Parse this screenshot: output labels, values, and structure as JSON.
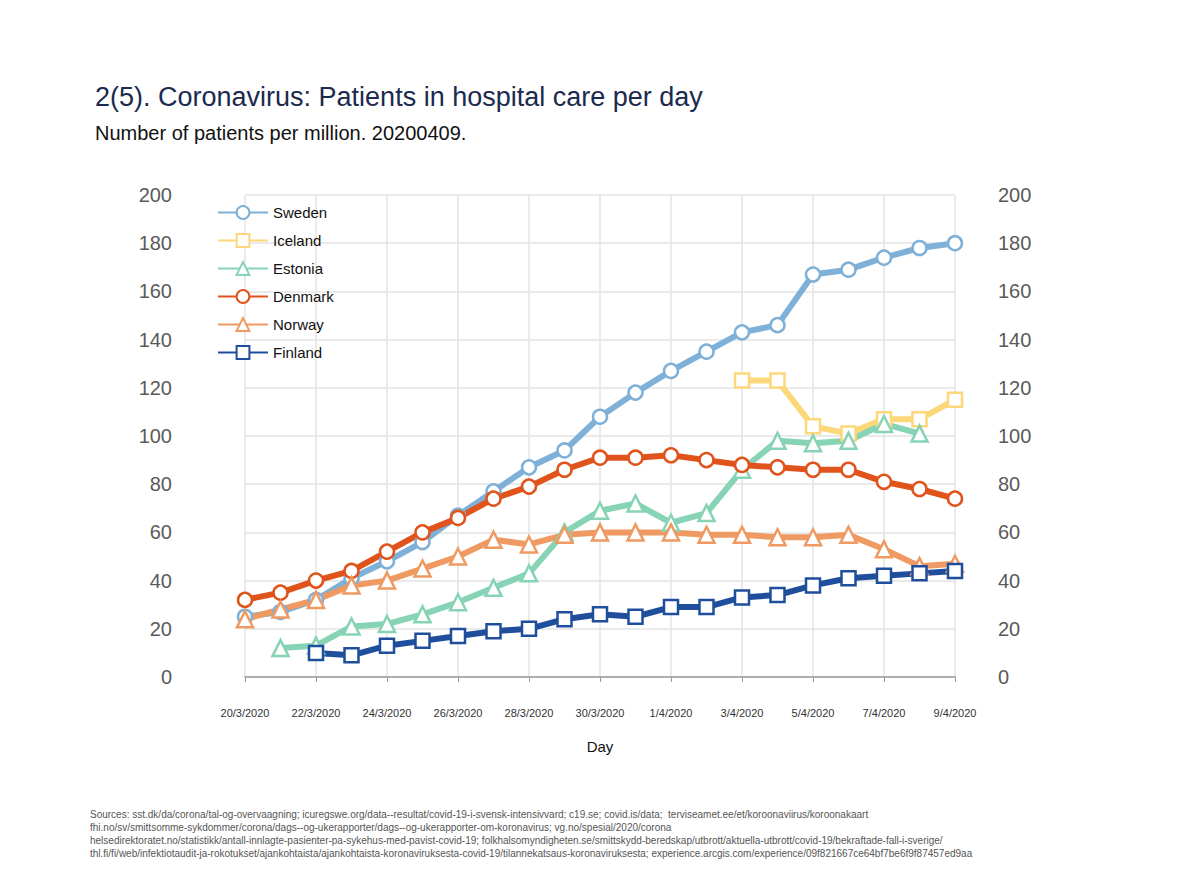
{
  "chart_data": {
    "type": "line",
    "title": "2(5). Coronavirus: Patients in hospital care per day",
    "subtitle": "Number of patients per million. 20200409.",
    "x_label": "Day",
    "categories": [
      "20/3/2020",
      null,
      "22/3/2020",
      null,
      "24/3/2020",
      null,
      "26/3/2020",
      null,
      "28/3/2020",
      null,
      "30/3/2020",
      null,
      "1/4/2020",
      null,
      "3/4/2020",
      null,
      "5/4/2020",
      null,
      "7/4/2020",
      null,
      "9/4/2020"
    ],
    "series": [
      {
        "name": "Sweden",
        "color": "#7fb1d8",
        "marker": "circle",
        "values": [
          25,
          27,
          32,
          41,
          48,
          56,
          67,
          77,
          87,
          94,
          108,
          118,
          127,
          135,
          143,
          146,
          167,
          169,
          174,
          178,
          180
        ]
      },
      {
        "name": "Iceland",
        "color": "#fdd87a",
        "marker": "square",
        "values": [
          null,
          null,
          null,
          null,
          null,
          null,
          null,
          null,
          null,
          null,
          null,
          null,
          null,
          null,
          123,
          123,
          104,
          101,
          107,
          107,
          115
        ]
      },
      {
        "name": "Estonia",
        "color": "#86d3b5",
        "marker": "triangle",
        "values": [
          null,
          12,
          13,
          21,
          22,
          26,
          31,
          37,
          43,
          60,
          69,
          72,
          64,
          68,
          86,
          98,
          97,
          98,
          105,
          101,
          null
        ]
      },
      {
        "name": "Denmark",
        "color": "#e0531b",
        "marker": "circle",
        "values": [
          32,
          35,
          40,
          44,
          52,
          60,
          66,
          74,
          79,
          86,
          91,
          91,
          92,
          90,
          88,
          87,
          86,
          86,
          81,
          78,
          74
        ]
      },
      {
        "name": "Norway",
        "color": "#ee9a62",
        "marker": "triangle",
        "values": [
          24,
          28,
          32,
          38,
          40,
          45,
          50,
          57,
          55,
          59,
          60,
          60,
          60,
          59,
          59,
          58,
          58,
          59,
          53,
          46,
          47
        ]
      },
      {
        "name": "Finland",
        "color": "#1f4e9c",
        "marker": "square",
        "values": [
          null,
          null,
          10,
          9,
          13,
          15,
          17,
          19,
          20,
          24,
          26,
          25,
          29,
          29,
          33,
          34,
          38,
          41,
          42,
          43,
          44
        ]
      }
    ],
    "ylim": [
      0,
      200
    ],
    "yticks": [
      0,
      20,
      40,
      60,
      80,
      100,
      120,
      140,
      160,
      180,
      200
    ],
    "y2lim": [
      0,
      200
    ],
    "y2ticks": [
      0,
      20,
      40,
      60,
      80,
      100,
      120,
      140,
      160,
      180,
      200
    ],
    "grid": true,
    "legend": "top-left",
    "source": [
      "Sources: sst.dk/da/corona/tal-og-overvaagning; icuregswe.org/data--resultat/covid-19-i-svensk-intensivvard; c19.se; covid.is/data;  terviseamet.ee/et/koroonaviirus/koroonakaart",
      "fhi.no/sv/smittsomme-sykdommer/corona/dags--og-ukerapporter/dags--og-ukerapporter-om-koronavirus; vg.no/spesial/2020/corona",
      "helsedirektoratet.no/statistikk/antall-innlagte-pasienter-pa-sykehus-med-pavist-covid-19; folkhalsomyndigheten.se/smittskydd-beredskap/utbrott/aktuella-utbrott/covid-19/bekraftade-fall-i-sverige/",
      "thl.fi/fi/web/infektiotaudit-ja-rokotukset/ajankohtaista/ajankohtaista-koronaviruksesta-covid-19/tilannekatsaus-koronaviruksesta; experience.arcgis.com/experience/09f821667ce64bf7be6f9f87457ed9aa"
    ]
  }
}
